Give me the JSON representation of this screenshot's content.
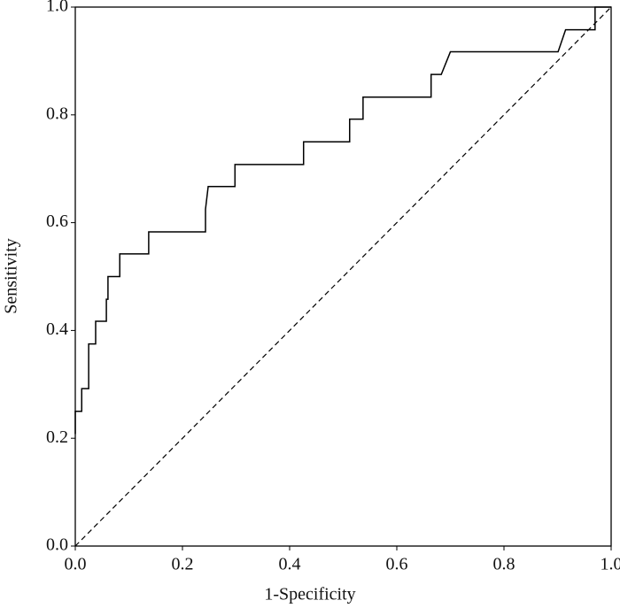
{
  "chart_data": {
    "type": "line",
    "xlabel": "1-Specificity",
    "ylabel": "Sensitivity",
    "x": [
      0,
      0,
      0.012,
      0.012,
      0.025,
      0.025,
      0.038,
      0.038,
      0.058,
      0.058,
      0.061,
      0.061,
      0.083,
      0.083,
      0.137,
      0.137,
      0.243,
      0.243,
      0.248,
      0.298,
      0.298,
      0.426,
      0.426,
      0.512,
      0.512,
      0.537,
      0.537,
      0.664,
      0.664,
      0.683,
      0.7,
      0.901,
      0.915,
      0.97,
      0.97,
      1.0
    ],
    "series": [
      {
        "color": "#000000",
        "values": [
          0.208,
          0.25,
          0.25,
          0.292,
          0.292,
          0.375,
          0.375,
          0.417,
          0.417,
          0.458,
          0.458,
          0.5,
          0.5,
          0.542,
          0.542,
          0.583,
          0.583,
          0.625,
          0.667,
          0.667,
          0.708,
          0.708,
          0.75,
          0.75,
          0.792,
          0.792,
          0.833,
          0.833,
          0.875,
          0.875,
          0.917,
          0.917,
          0.958,
          0.958,
          1.0,
          1.0
        ]
      }
    ],
    "xlim": [
      0,
      1
    ],
    "ylim": [
      0,
      1
    ],
    "xticks": [
      {
        "value": 0,
        "label": "0.0"
      },
      0.2,
      0.4,
      0.6,
      0.8,
      {
        "value": 1,
        "label": "1.0"
      }
    ],
    "yticks": [
      {
        "value": 0,
        "label": "0.0"
      },
      0.2,
      0.4,
      0.6,
      0.8,
      {
        "value": 1,
        "label": "1.0"
      }
    ],
    "reference_line": true,
    "grid": false
  }
}
